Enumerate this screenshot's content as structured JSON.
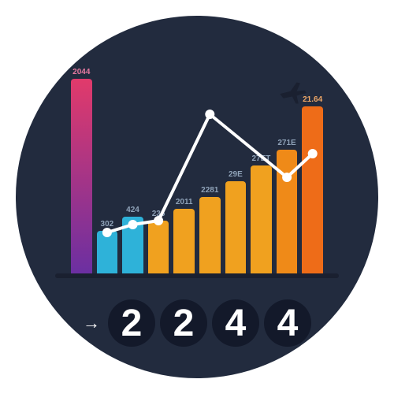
{
  "background_color": "#ffffff",
  "circle_bg": "#222b3e",
  "chart": {
    "type": "bar+line",
    "axis_color": "#1a2030",
    "bars": [
      {
        "height_pct": 100,
        "color_top": "#e13a6b",
        "color_bottom": "#6a2fa2",
        "label": "2044",
        "label_pos": "top",
        "label_color": "#e67aa0"
      },
      {
        "height_pct": 23,
        "color": "#2eb2d9",
        "label": "302",
        "label_pos": "top",
        "label_color": "#8fa2b8"
      },
      {
        "height_pct": 30,
        "color": "#2eb2d9",
        "label": "424",
        "label_pos": "top",
        "label_color": "#8fa2b8"
      },
      {
        "height_pct": 28,
        "color": "#f0a11f",
        "label": "236",
        "label_pos": "top",
        "label_color": "#8fa2b8"
      },
      {
        "height_pct": 34,
        "color": "#f0a11f",
        "label": "2011",
        "label_pos": "top",
        "label_color": "#8fa2b8"
      },
      {
        "height_pct": 40,
        "color": "#f0a11f",
        "label": "2281",
        "label_pos": "top",
        "label_color": "#8fa2b8"
      },
      {
        "height_pct": 48,
        "color": "#f0a11f",
        "label": "29E",
        "label_pos": "top",
        "label_color": "#8fa2b8"
      },
      {
        "height_pct": 56,
        "color": "#f0a11f",
        "label": "27ET",
        "label_pos": "top",
        "label_color": "#8fa2b8"
      },
      {
        "height_pct": 64,
        "color": "#ef8a18",
        "label": "271E",
        "label_pos": "top",
        "label_color": "#8fa2b8"
      },
      {
        "height_pct": 86,
        "color": "#ee6c18",
        "label": "21.64",
        "label_pos": "top",
        "label_color": "#f0a867"
      }
    ],
    "line": {
      "color": "#ffffff",
      "width": 4,
      "marker_radius": 5,
      "marker_fill": "#ffffff",
      "marker_stroke": "#ffffff",
      "points": [
        {
          "x": 1,
          "y": 78
        },
        {
          "x": 2,
          "y": 74
        },
        {
          "x": 3,
          "y": 72
        },
        {
          "x": 5,
          "y": 18
        },
        {
          "x": 8,
          "y": 50
        },
        {
          "x": 9,
          "y": 38
        }
      ]
    }
  },
  "plane_color": "#1a2030",
  "digits": {
    "disc_bg": "#13192a",
    "text_color": "#ffffff",
    "arrow_glyph": "→",
    "values": [
      "2",
      "2",
      "4",
      "4"
    ]
  }
}
